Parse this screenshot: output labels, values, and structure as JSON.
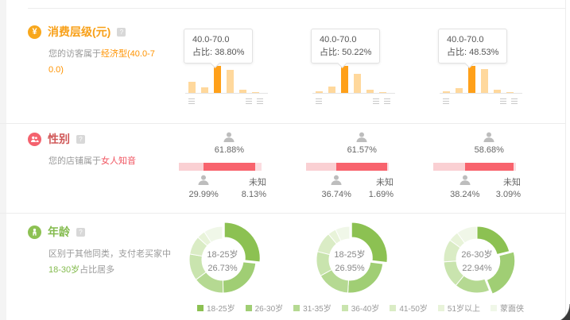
{
  "colors": {
    "consumption_accent": "#f8a018",
    "bar_light": "#ffd89c",
    "bar_highlight": "#ffa019",
    "gender_accent": "#f4626e",
    "gender_female": "#f8636d",
    "gender_male": "#fad0d3",
    "gender_unknown": "#fbdce0",
    "age_accent": "#8dc153"
  },
  "sections": {
    "consumption": {
      "title": "消费层级(元)",
      "help_icon": "?",
      "desc_prefix": "您的访客属于",
      "desc_highlight": "经济型(40.0-70.0)"
    },
    "gender": {
      "title": "性别",
      "help_icon": "?",
      "desc_prefix": "您的店铺属于",
      "desc_highlight": "女人知音"
    },
    "age": {
      "title": "年龄",
      "help_icon": "?",
      "desc_line1": "区别于其他同类，支付老买家中",
      "desc_highlight": "18-30岁",
      "desc_suffix": "占比居多"
    }
  },
  "chart_data": [
    {
      "type": "bar",
      "section": "消费层级(元)",
      "bar_color": "#ffd89c",
      "highlight_color": "#ffa019",
      "ylim": [
        0,
        100
      ],
      "charts": [
        {
          "tooltip_range": "40.0-70.0",
          "tooltip_label": "占比:",
          "tooltip_value": "38.80%",
          "values": [
            42,
            22,
            100,
            86,
            11,
            4
          ],
          "highlight_index": 2
        },
        {
          "tooltip_range": "40.0-70.0",
          "tooltip_label": "占比:",
          "tooltip_value": "50.22%",
          "values": [
            5,
            24,
            100,
            70,
            11,
            4
          ],
          "highlight_index": 2
        },
        {
          "tooltip_range": "40.0-70.0",
          "tooltip_label": "占比:",
          "tooltip_value": "48.53%",
          "values": [
            6,
            18,
            100,
            89,
            12,
            4
          ],
          "highlight_index": 2
        }
      ]
    },
    {
      "type": "stacked-bar",
      "section": "性别",
      "unknown_label": "未知",
      "segment_order": [
        "male",
        "female",
        "unknown"
      ],
      "colors": {
        "female": "#f8636d",
        "male": "#fad0d3",
        "unknown": "#fbdce0"
      },
      "charts": [
        {
          "female": "61.88%",
          "male": "29.99%",
          "unknown": "8.13%"
        },
        {
          "female": "61.57%",
          "male": "36.74%",
          "unknown": "1.69%"
        },
        {
          "female": "58.68%",
          "male": "38.24%",
          "unknown": "3.09%"
        }
      ]
    },
    {
      "type": "donut",
      "section": "年龄",
      "categories": [
        "18-25岁",
        "26-30岁",
        "31-35岁",
        "36-40岁",
        "41-50岁",
        "51岁以上",
        "蒙面侠"
      ],
      "colors": [
        "#8cc152",
        "#a0ce74",
        "#b5d992",
        "#c9e4ae",
        "#daecc5",
        "#e8f3d9",
        "#f0f7e8"
      ],
      "charts": [
        {
          "center_label": "18-25岁",
          "center_value": "26.73%",
          "values": [
            26.73,
            23,
            15,
            13,
            9,
            4,
            9.27
          ],
          "highlight_index": 0
        },
        {
          "center_label": "18-25岁",
          "center_value": "26.95%",
          "values": [
            26.95,
            24,
            16,
            12,
            10,
            4,
            7.05
          ],
          "highlight_index": 0
        },
        {
          "center_label": "26-30岁",
          "center_value": "22.94%",
          "values": [
            21,
            22.94,
            17,
            13,
            11,
            5,
            10.06
          ],
          "highlight_index": 1
        }
      ],
      "legend": [
        "18-25岁",
        "26-30岁",
        "31-35岁",
        "36-40岁",
        "41-50岁",
        "51岁以上",
        "蒙面侠"
      ]
    }
  ]
}
